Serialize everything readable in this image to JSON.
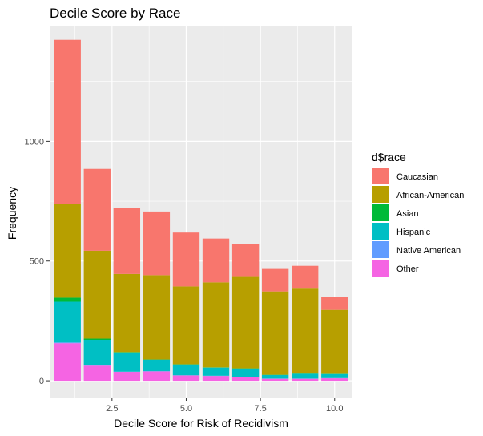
{
  "chart_data": {
    "type": "bar",
    "stacked": true,
    "title": "Decile Score by Race",
    "xlabel": "Decile Score for Risk of Recidivism",
    "ylabel": "Frequency",
    "x": [
      1,
      2,
      3,
      4,
      5,
      6,
      7,
      8,
      9,
      10
    ],
    "xlim": [
      0.4,
      10.6
    ],
    "ylim": [
      -70,
      1480
    ],
    "x_ticks": [
      2.5,
      5.0,
      7.5,
      10.0
    ],
    "x_tick_labels": [
      "2.5",
      "5.0",
      "7.5",
      "10.0"
    ],
    "y_ticks": [
      0,
      500,
      1000
    ],
    "y_tick_labels": [
      "0",
      "500",
      "1000"
    ],
    "grid": true,
    "legend": {
      "title": "d$race",
      "position": "right"
    },
    "series": [
      {
        "name": "Other",
        "color": "#F564E3",
        "values": [
          157,
          63,
          37,
          39,
          22,
          20,
          15,
          8,
          8,
          10
        ]
      },
      {
        "name": "Native American",
        "color": "#619CFF",
        "values": [
          3,
          2,
          1,
          1,
          1,
          1,
          1,
          1,
          1,
          1
        ]
      },
      {
        "name": "Hispanic",
        "color": "#00BFC4",
        "values": [
          170,
          106,
          80,
          48,
          45,
          34,
          35,
          15,
          20,
          17
        ]
      },
      {
        "name": "Asian",
        "color": "#00BA38",
        "values": [
          17,
          5,
          2,
          1,
          1,
          1,
          1,
          1,
          1,
          1
        ]
      },
      {
        "name": "African-American",
        "color": "#B79F00",
        "values": [
          392,
          367,
          326,
          352,
          325,
          355,
          385,
          348,
          358,
          267
        ]
      },
      {
        "name": "Caucasian",
        "color": "#F8766D",
        "values": [
          685,
          342,
          275,
          266,
          225,
          183,
          135,
          94,
          92,
          53
        ]
      }
    ],
    "legend_order": [
      "Caucasian",
      "African-American",
      "Asian",
      "Hispanic",
      "Native American",
      "Other"
    ]
  }
}
